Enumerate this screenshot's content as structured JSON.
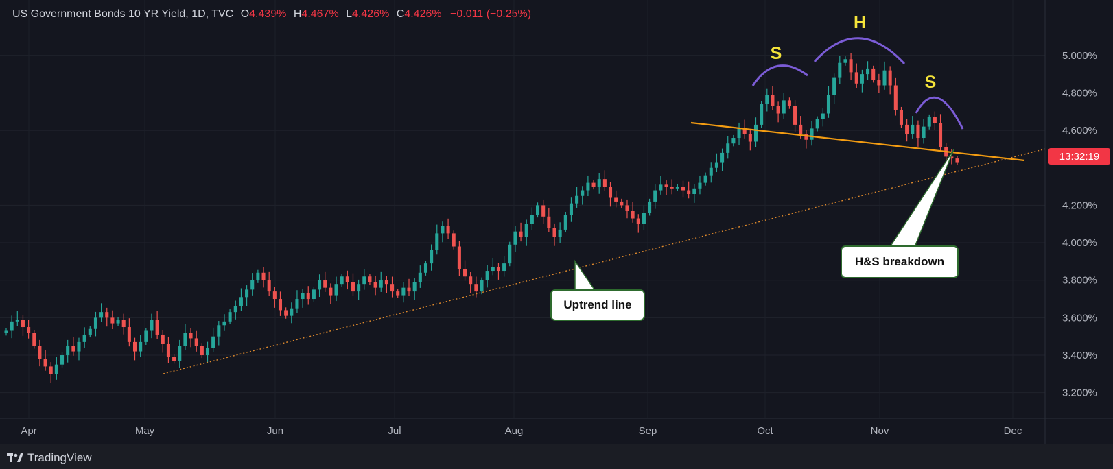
{
  "header": {
    "symbol": "US Government Bonds 10 YR Yield, 1D, TVC",
    "open_label": "O",
    "open": "4.439%",
    "high_label": "H",
    "high": "4.467%",
    "low_label": "L",
    "low": "4.426%",
    "close_label": "C",
    "close": "4.426%",
    "change": "−0.011 (−0.25%)"
  },
  "scale_button": "%",
  "price_tag": "13:32:19",
  "pattern_labels": {
    "left_shoulder": "S",
    "head": "H",
    "right_shoulder": "S"
  },
  "annotations": {
    "uptrend": "Uptrend line",
    "breakdown": "H&S breakdown"
  },
  "footer": {
    "brand": "TradingView"
  },
  "colors": {
    "up": "#26a69a",
    "down": "#ef5350",
    "neckline": "#f39c12",
    "trendline": "#e08a2c",
    "arc": "#7b5cd6",
    "label": "#f5e43a",
    "background": "#14161f"
  },
  "chart_data": {
    "type": "candlestick",
    "ylabel": "%",
    "ylim": [
      3.1,
      5.12
    ],
    "y_ticks": [
      "3.200%",
      "3.400%",
      "3.600%",
      "3.800%",
      "4.000%",
      "4.200%",
      "4.600%",
      "4.800%",
      "5.000%"
    ],
    "x_ticks": [
      "Apr",
      "May",
      "Jun",
      "Jul",
      "Aug",
      "Sep",
      "Oct",
      "Nov",
      "Dec"
    ],
    "last_value": 4.426,
    "ohlc_closes": [
      3.53,
      3.58,
      3.59,
      3.55,
      3.52,
      3.45,
      3.38,
      3.34,
      3.3,
      3.35,
      3.4,
      3.45,
      3.42,
      3.47,
      3.51,
      3.54,
      3.6,
      3.63,
      3.6,
      3.57,
      3.59,
      3.55,
      3.47,
      3.42,
      3.47,
      3.53,
      3.59,
      3.51,
      3.46,
      3.39,
      3.37,
      3.45,
      3.52,
      3.49,
      3.45,
      3.4,
      3.44,
      3.5,
      3.56,
      3.58,
      3.63,
      3.66,
      3.71,
      3.75,
      3.8,
      3.84,
      3.8,
      3.74,
      3.7,
      3.64,
      3.61,
      3.65,
      3.7,
      3.73,
      3.7,
      3.75,
      3.8,
      3.76,
      3.72,
      3.78,
      3.82,
      3.79,
      3.74,
      3.78,
      3.82,
      3.79,
      3.76,
      3.8,
      3.78,
      3.74,
      3.72,
      3.76,
      3.74,
      3.79,
      3.84,
      3.89,
      3.96,
      4.05,
      4.09,
      4.05,
      3.98,
      3.86,
      3.82,
      3.78,
      3.74,
      3.8,
      3.85,
      3.87,
      3.85,
      3.89,
      3.99,
      4.06,
      4.03,
      4.1,
      4.15,
      4.2,
      4.14,
      4.08,
      4.03,
      4.07,
      4.15,
      4.21,
      4.25,
      4.28,
      4.32,
      4.3,
      4.34,
      4.3,
      4.24,
      4.22,
      4.2,
      4.17,
      4.13,
      4.1,
      4.16,
      4.22,
      4.28,
      4.31,
      4.3,
      4.29,
      4.3,
      4.28,
      4.26,
      4.29,
      4.32,
      4.36,
      4.4,
      4.43,
      4.48,
      4.53,
      4.56,
      4.61,
      4.58,
      4.54,
      4.63,
      4.74,
      4.79,
      4.73,
      4.69,
      4.76,
      4.73,
      4.63,
      4.58,
      4.55,
      4.61,
      4.66,
      4.69,
      4.79,
      4.88,
      4.96,
      4.98,
      4.91,
      4.85,
      4.9,
      4.93,
      4.87,
      4.84,
      4.92,
      4.84,
      4.71,
      4.63,
      4.58,
      4.63,
      4.56,
      4.62,
      4.67,
      4.64,
      4.51,
      4.46,
      4.45,
      4.43
    ]
  }
}
